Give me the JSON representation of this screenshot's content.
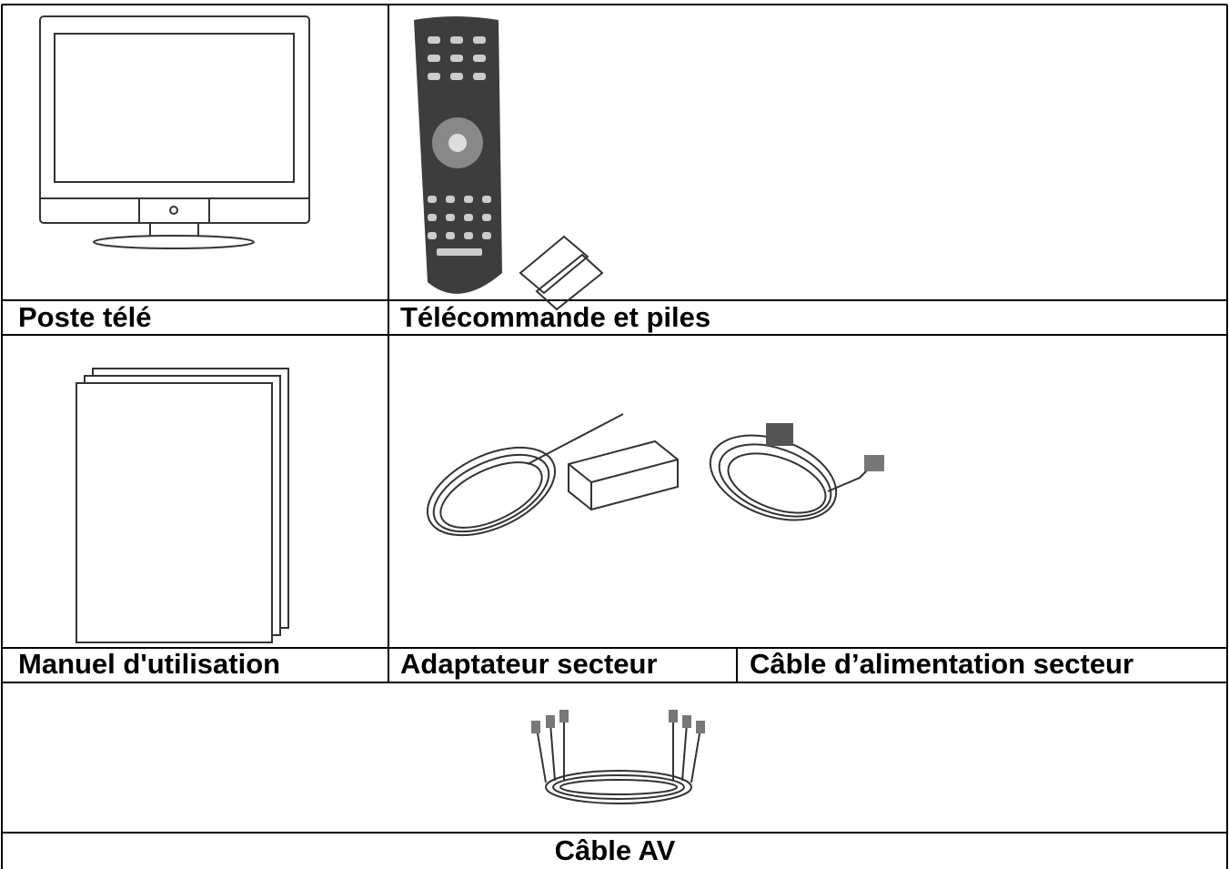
{
  "labels": [
    "Poste télé",
    "Télécommande et piles",
    "Manuel d'utilisation",
    "Adaptateur secteur",
    "Câble d’alimentation secteur",
    "Câble AV"
  ]
}
